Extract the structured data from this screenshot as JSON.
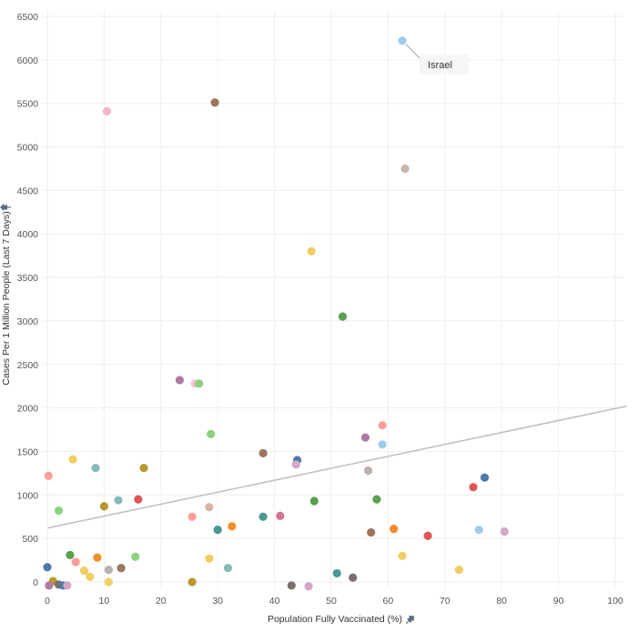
{
  "chart_data": {
    "type": "scatter",
    "xlabel": "Population Fully Vaccinated (%)",
    "ylabel": "Cases Per 1 Million People (Last 7 Days)",
    "xlim": [
      0,
      100
    ],
    "ylim": [
      0,
      6500
    ],
    "xticks": [
      0,
      10,
      20,
      30,
      40,
      50,
      60,
      70,
      80,
      90,
      100
    ],
    "yticks": [
      0,
      500,
      1000,
      1500,
      2000,
      2500,
      3000,
      3500,
      4000,
      4500,
      5000,
      5500,
      6000,
      6500
    ],
    "grid": true,
    "legend": "none",
    "axis_pin_icon": "pin-icon",
    "trendline": {
      "x": [
        0,
        102
      ],
      "y": [
        620,
        2020
      ],
      "color": "#c2c2c2"
    },
    "annotation": {
      "label": "Israel",
      "x": 62.5,
      "y": 6220
    },
    "points": [
      {
        "x": 62.5,
        "y": 6220,
        "color": "#a0cbe8"
      },
      {
        "x": 29.5,
        "y": 5510,
        "color": "#9c755f"
      },
      {
        "x": 10.5,
        "y": 5410,
        "color": "#f1b5c9"
      },
      {
        "x": 63.0,
        "y": 4750,
        "color": "#c9b5a7"
      },
      {
        "x": 46.5,
        "y": 3800,
        "color": "#f1ce63"
      },
      {
        "x": 52.0,
        "y": 3050,
        "color": "#59a14f"
      },
      {
        "x": 23.3,
        "y": 2320,
        "color": "#b07aa1"
      },
      {
        "x": 26.0,
        "y": 2280,
        "color": "#fabfd2"
      },
      {
        "x": 26.7,
        "y": 2280,
        "color": "#8cd17d"
      },
      {
        "x": 28.8,
        "y": 1700,
        "color": "#8cd17d"
      },
      {
        "x": 59.0,
        "y": 1800,
        "color": "#ff9d9a"
      },
      {
        "x": 59.0,
        "y": 1580,
        "color": "#a0cbe8"
      },
      {
        "x": 56.0,
        "y": 1660,
        "color": "#b07aa1"
      },
      {
        "x": 38.0,
        "y": 1480,
        "color": "#9c755f"
      },
      {
        "x": 44.0,
        "y": 1400,
        "color": "#4e79a7"
      },
      {
        "x": 43.8,
        "y": 1350,
        "color": "#d4a6c8"
      },
      {
        "x": 56.5,
        "y": 1280,
        "color": "#bab0ac"
      },
      {
        "x": 77.0,
        "y": 1200,
        "color": "#4e79a7"
      },
      {
        "x": 75.0,
        "y": 1090,
        "color": "#e15759"
      },
      {
        "x": 0.2,
        "y": 1220,
        "color": "#ff9d9a"
      },
      {
        "x": 4.5,
        "y": 1410,
        "color": "#f1ce63"
      },
      {
        "x": 8.5,
        "y": 1310,
        "color": "#86bcb6"
      },
      {
        "x": 17.0,
        "y": 1310,
        "color": "#b6992d"
      },
      {
        "x": 12.5,
        "y": 940,
        "color": "#86bcb6"
      },
      {
        "x": 16.0,
        "y": 950,
        "color": "#e15759"
      },
      {
        "x": 10.0,
        "y": 870,
        "color": "#b6992d"
      },
      {
        "x": 2.0,
        "y": 820,
        "color": "#8cd17d"
      },
      {
        "x": 28.5,
        "y": 860,
        "color": "#d7b5a6"
      },
      {
        "x": 25.5,
        "y": 750,
        "color": "#ff9d9a"
      },
      {
        "x": 38.0,
        "y": 750,
        "color": "#499894"
      },
      {
        "x": 41.0,
        "y": 760,
        "color": "#d37295"
      },
      {
        "x": 47.0,
        "y": 930,
        "color": "#59a14f"
      },
      {
        "x": 58.0,
        "y": 950,
        "color": "#59a14f"
      },
      {
        "x": 32.5,
        "y": 640,
        "color": "#f28e2b"
      },
      {
        "x": 30.0,
        "y": 600,
        "color": "#499894"
      },
      {
        "x": 57.0,
        "y": 570,
        "color": "#9c755f"
      },
      {
        "x": 61.0,
        "y": 610,
        "color": "#f28e2b"
      },
      {
        "x": 67.0,
        "y": 530,
        "color": "#e15759"
      },
      {
        "x": 76.0,
        "y": 600,
        "color": "#a0cbe8"
      },
      {
        "x": 80.5,
        "y": 580,
        "color": "#d4a6c8"
      },
      {
        "x": 4.0,
        "y": 310,
        "color": "#59a14f"
      },
      {
        "x": 5.0,
        "y": 230,
        "color": "#ff9d9a"
      },
      {
        "x": 8.8,
        "y": 280,
        "color": "#f28e2b"
      },
      {
        "x": 15.5,
        "y": 290,
        "color": "#8cd17d"
      },
      {
        "x": 28.5,
        "y": 270,
        "color": "#f1ce63"
      },
      {
        "x": 0.0,
        "y": 170,
        "color": "#4e79a7"
      },
      {
        "x": 6.5,
        "y": 130,
        "color": "#f1ce63"
      },
      {
        "x": 10.8,
        "y": 140,
        "color": "#bab0ac"
      },
      {
        "x": 13.0,
        "y": 160,
        "color": "#9c755f"
      },
      {
        "x": 31.8,
        "y": 160,
        "color": "#86bcb6"
      },
      {
        "x": 7.5,
        "y": 60,
        "color": "#f1ce63"
      },
      {
        "x": 1.0,
        "y": 10,
        "color": "#b6992d"
      },
      {
        "x": 10.8,
        "y": 0,
        "color": "#f1ce63"
      },
      {
        "x": 25.5,
        "y": 0,
        "color": "#b6992d"
      },
      {
        "x": 51.0,
        "y": 100,
        "color": "#499894"
      },
      {
        "x": 53.8,
        "y": 50,
        "color": "#79706e"
      },
      {
        "x": 62.5,
        "y": 300,
        "color": "#f1ce63"
      },
      {
        "x": 72.5,
        "y": 140,
        "color": "#f1ce63"
      },
      {
        "x": 0.3,
        "y": -40,
        "color": "#b07aa1"
      },
      {
        "x": 2.0,
        "y": -30,
        "color": "#79706e"
      },
      {
        "x": 2.8,
        "y": -40,
        "color": "#4e79a7"
      },
      {
        "x": 3.5,
        "y": -40,
        "color": "#d4a6c8"
      },
      {
        "x": 43.0,
        "y": -40,
        "color": "#79706e"
      },
      {
        "x": 46.0,
        "y": -50,
        "color": "#d4a6c8"
      }
    ]
  }
}
